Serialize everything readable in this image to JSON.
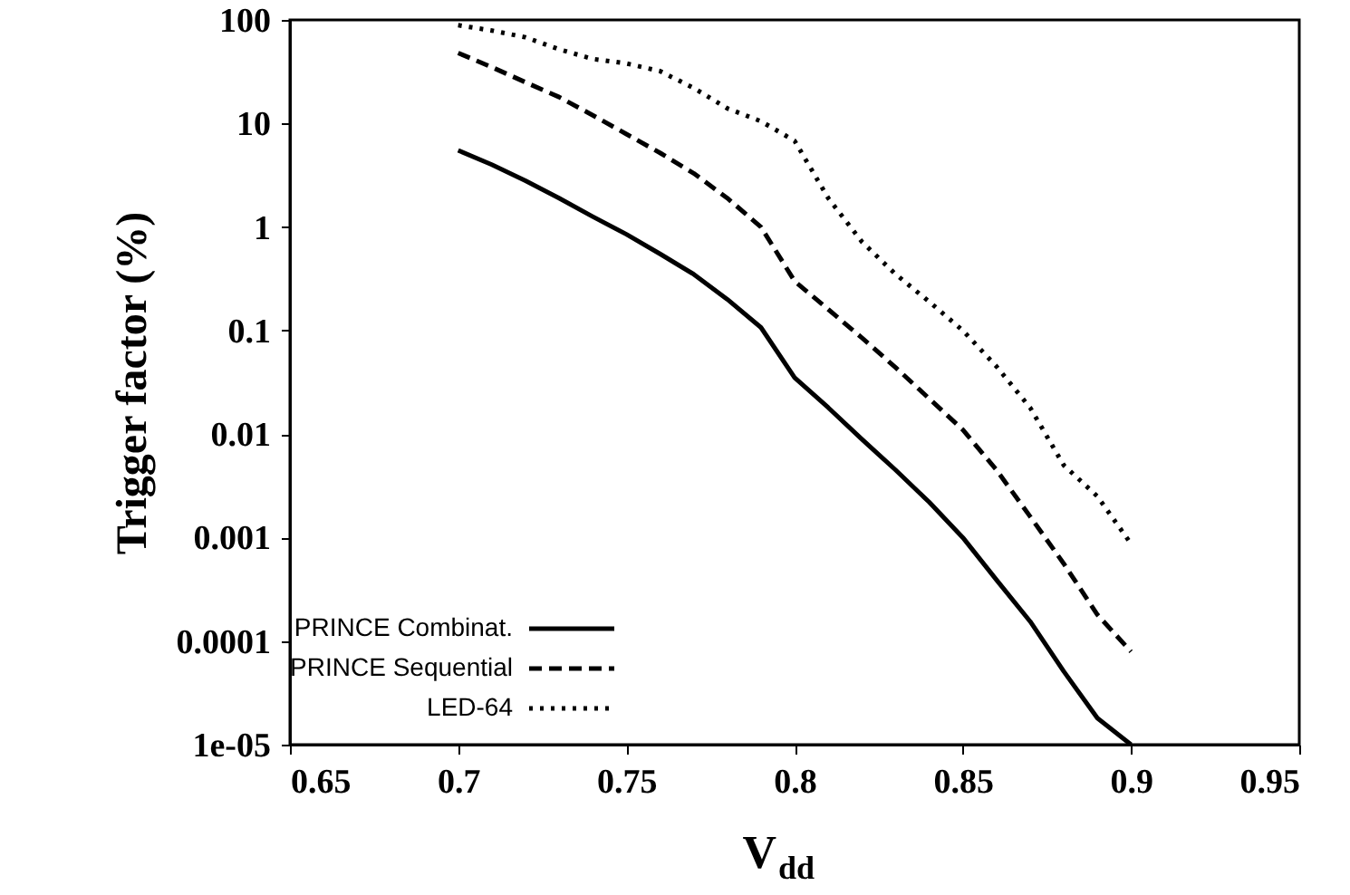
{
  "chart_data": {
    "type": "line",
    "xlabel": "V$_{dd}$",
    "ylabel": "Trigger factor (%)",
    "log": "y",
    "grid": false,
    "legend": "bottom left",
    "marker": "none",
    "x": [
      0.7,
      0.71,
      0.72,
      0.73,
      0.74,
      0.75,
      0.76,
      0.77,
      0.78,
      0.79,
      0.8,
      0.81,
      0.82,
      0.83,
      0.84,
      0.85,
      0.86,
      0.87,
      0.88,
      0.89,
      0.9
    ],
    "xlim": [
      0.65,
      0.95
    ],
    "xticks": [
      0.65,
      0.7,
      0.75,
      0.8,
      0.85,
      0.9,
      0.95
    ],
    "ylim": [
      1e-05,
      100
    ],
    "yticks": [
      {
        "value": 1e-05,
        "label": "1e-05"
      },
      0.0001,
      0.001,
      0.01,
      0.1,
      1,
      10,
      100
    ],
    "series": [
      {
        "name": "PRINCE Combinat.",
        "color": "#000000",
        "line_style": "solid",
        "values": [
          5.5,
          4.0,
          2.8,
          1.9,
          1.26,
          0.85,
          0.55,
          0.35,
          0.2,
          0.107,
          0.035,
          0.018,
          0.0089,
          0.0045,
          0.0022,
          0.001,
          0.00039,
          0.000155,
          5.1e-05,
          1.8e-05,
          1e-05
        ]
      },
      {
        "name": "PRINCE Sequential",
        "color": "#000000",
        "line_style": "dashed",
        "values": [
          48,
          35,
          25,
          18,
          12,
          7.9,
          5.2,
          3.3,
          1.9,
          1.0,
          0.3,
          0.16,
          0.085,
          0.044,
          0.022,
          0.011,
          0.0045,
          0.0016,
          0.00056,
          0.00018,
          7.9e-05
        ]
      },
      {
        "name": "LED-64",
        "color": "#000000",
        "line_style": "dotted",
        "values": [
          89,
          79,
          68,
          52,
          42,
          38,
          32,
          22,
          14,
          10.5,
          6.8,
          1.9,
          0.72,
          0.35,
          0.19,
          0.1,
          0.045,
          0.018,
          0.005,
          0.0025,
          0.00087
        ]
      }
    ]
  }
}
